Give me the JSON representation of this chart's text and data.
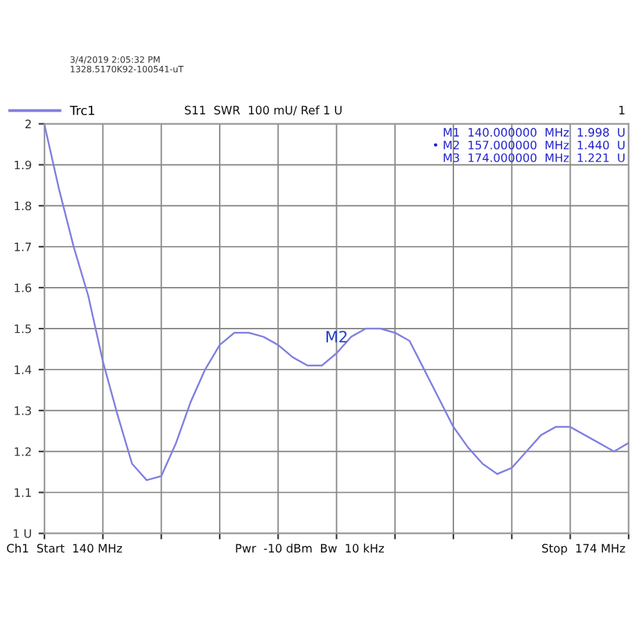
{
  "chart_data": {
    "type": "line",
    "categories": [
      null,
      null,
      null,
      null,
      null,
      null,
      null,
      null,
      null,
      null,
      null,
      null,
      null,
      null,
      null,
      null,
      null,
      null,
      null,
      null,
      null,
      null,
      null,
      null,
      null,
      null,
      null,
      null,
      null,
      null,
      null,
      null,
      null,
      null,
      null,
      null,
      null,
      null,
      null,
      null,
      null
    ],
    "series": [
      {
        "name": "Trc1",
        "color": "#7f7fe0",
        "values": [
          1.998,
          1.84,
          1.7,
          1.58,
          1.42,
          1.29,
          1.17,
          1.13,
          1.14,
          1.22,
          1.32,
          1.4,
          1.46,
          1.49,
          1.49,
          1.48,
          1.46,
          1.43,
          1.41,
          1.41,
          1.44,
          1.48,
          1.5,
          1.5,
          1.49,
          1.47,
          1.4,
          1.33,
          1.26,
          1.21,
          1.17,
          1.145,
          1.16,
          1.2,
          1.24,
          1.26,
          1.26,
          1.24,
          1.22,
          1.2,
          1.221
        ],
        "value_labels": [
          null,
          null,
          null,
          null,
          null,
          null,
          null,
          null,
          null,
          null,
          null,
          null,
          null,
          null,
          null,
          null,
          null,
          null,
          null,
          null,
          "M2",
          null,
          null,
          null,
          null,
          null,
          null,
          null,
          null,
          null,
          null,
          null,
          null,
          null,
          null,
          null,
          null,
          null,
          null,
          null,
          null
        ]
      }
    ],
    "ylim": [
      1,
      2
    ],
    "yticks": [
      {
        "value": 1,
        "label": "1 U"
      },
      1.1,
      1.2,
      1.3,
      1.4,
      1.5,
      1.6,
      1.7,
      1.8,
      1.9,
      2
    ],
    "grid": true,
    "legend": "top left",
    "annotations": [
      "3/4/2019 2:05:32 PM",
      "1328.5170K92-100541-uT",
      "S11  SWR  100 mU/ Ref 1 U",
      "1",
      "M1  140.000000  MHz  1.998  U",
      "• M2  157.000000  MHz  1.440  U",
      "M3  174.000000  MHz  1.221  U",
      "Ch1  Start  140 MHz",
      "Pwr  -10 dBm  Bw  10 kHz",
      "Stop  174 MHz"
    ]
  }
}
